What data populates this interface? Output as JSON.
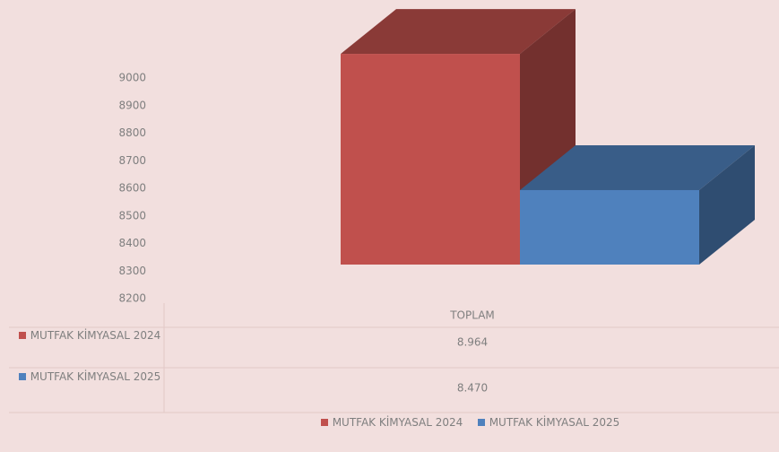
{
  "chart_data": {
    "type": "bar3d",
    "categories": [
      "TOPLAM"
    ],
    "series": [
      {
        "name": "MUTFAK KİMYASAL 2024",
        "color": "#c0504d",
        "values": [
          8964
        ],
        "value_labels": [
          "8.964"
        ]
      },
      {
        "name": "MUTFAK KİMYASAL 2025",
        "color": "#4f81bd",
        "values": [
          8470
        ],
        "value_labels": [
          "8.470"
        ]
      }
    ],
    "ylim": [
      8200,
      9000
    ],
    "yticks": [
      8200,
      8300,
      8400,
      8500,
      8600,
      8700,
      8800,
      8900,
      9000
    ]
  }
}
